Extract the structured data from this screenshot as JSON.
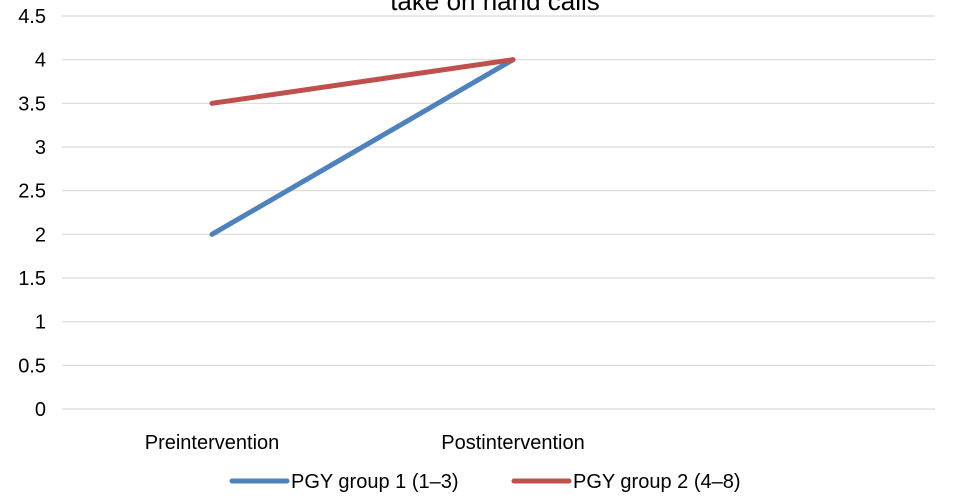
{
  "chart_data": {
    "type": "line",
    "title_fragment": "take on hand calls",
    "categories": [
      "Preintervention",
      "Postintervention"
    ],
    "series": [
      {
        "name": "PGY group 1 (1–3)",
        "values": [
          2,
          4
        ],
        "color": "#4f81bd"
      },
      {
        "name": "PGY group 2 (4–8)",
        "values": [
          3.5,
          4
        ],
        "color": "#c0504d"
      }
    ],
    "ylim": [
      0,
      4.5
    ],
    "yticks": [
      "0",
      "0.5",
      "1",
      "1.5",
      "2",
      "2.5",
      "3",
      "3.5",
      "4",
      "4.5"
    ],
    "grid": true,
    "gridColor": "#d9d9d9",
    "legend": "bottom"
  }
}
